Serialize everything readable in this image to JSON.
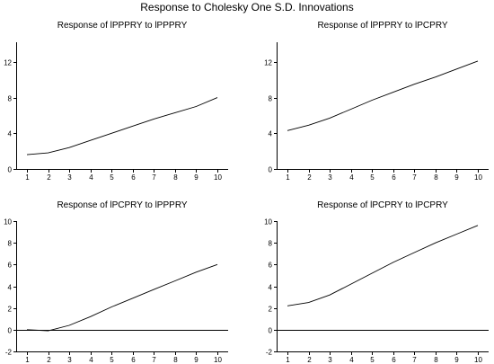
{
  "figure_title": "Response to Cholesky One S.D. Innovations",
  "chart_data": [
    {
      "type": "line",
      "title": "Response of lPPPRY to lPPPRY",
      "x": [
        1,
        2,
        3,
        4,
        5,
        6,
        7,
        8,
        9,
        10
      ],
      "series": [
        {
          "values": [
            1.6,
            1.8,
            2.4,
            3.2,
            4.0,
            4.8,
            5.6,
            6.3,
            7.0,
            8.0
          ]
        }
      ],
      "xticks": [
        1,
        2,
        3,
        4,
        5,
        6,
        7,
        8,
        9,
        10
      ],
      "yticks": [
        0,
        4,
        8,
        12
      ],
      "ylim": [
        0,
        14.2
      ],
      "zero_line": false
    },
    {
      "type": "line",
      "title": "Response of lPPPRY to lPCPRY",
      "x": [
        1,
        2,
        3,
        4,
        5,
        6,
        7,
        8,
        9,
        10
      ],
      "series": [
        {
          "values": [
            4.3,
            4.9,
            5.7,
            6.7,
            7.7,
            8.6,
            9.5,
            10.3,
            11.2,
            12.1
          ]
        }
      ],
      "xticks": [
        1,
        2,
        3,
        4,
        5,
        6,
        7,
        8,
        9,
        10
      ],
      "yticks": [
        0,
        4,
        8,
        12
      ],
      "ylim": [
        0,
        14.2
      ],
      "zero_line": false
    },
    {
      "type": "line",
      "title": "Response of lPCPRY to lPPPRY",
      "x": [
        1,
        2,
        3,
        4,
        5,
        6,
        7,
        8,
        9,
        10
      ],
      "series": [
        {
          "values": [
            0.0,
            -0.1,
            0.4,
            1.2,
            2.1,
            2.9,
            3.7,
            4.5,
            5.3,
            6.0
          ]
        }
      ],
      "xticks": [
        1,
        2,
        3,
        4,
        5,
        6,
        7,
        8,
        9,
        10
      ],
      "yticks": [
        -2,
        0,
        2,
        4,
        6,
        8,
        10
      ],
      "ylim": [
        -2,
        10
      ],
      "zero_line": true
    },
    {
      "type": "line",
      "title": "Response of lPCPRY to lPCPRY",
      "x": [
        1,
        2,
        3,
        4,
        5,
        6,
        7,
        8,
        9,
        10
      ],
      "series": [
        {
          "values": [
            2.2,
            2.5,
            3.2,
            4.2,
            5.2,
            6.2,
            7.1,
            8.0,
            8.8,
            9.6
          ]
        }
      ],
      "xticks": [
        1,
        2,
        3,
        4,
        5,
        6,
        7,
        8,
        9,
        10
      ],
      "yticks": [
        -2,
        0,
        2,
        4,
        6,
        8,
        10
      ],
      "ylim": [
        -2,
        10
      ],
      "zero_line": true
    }
  ]
}
